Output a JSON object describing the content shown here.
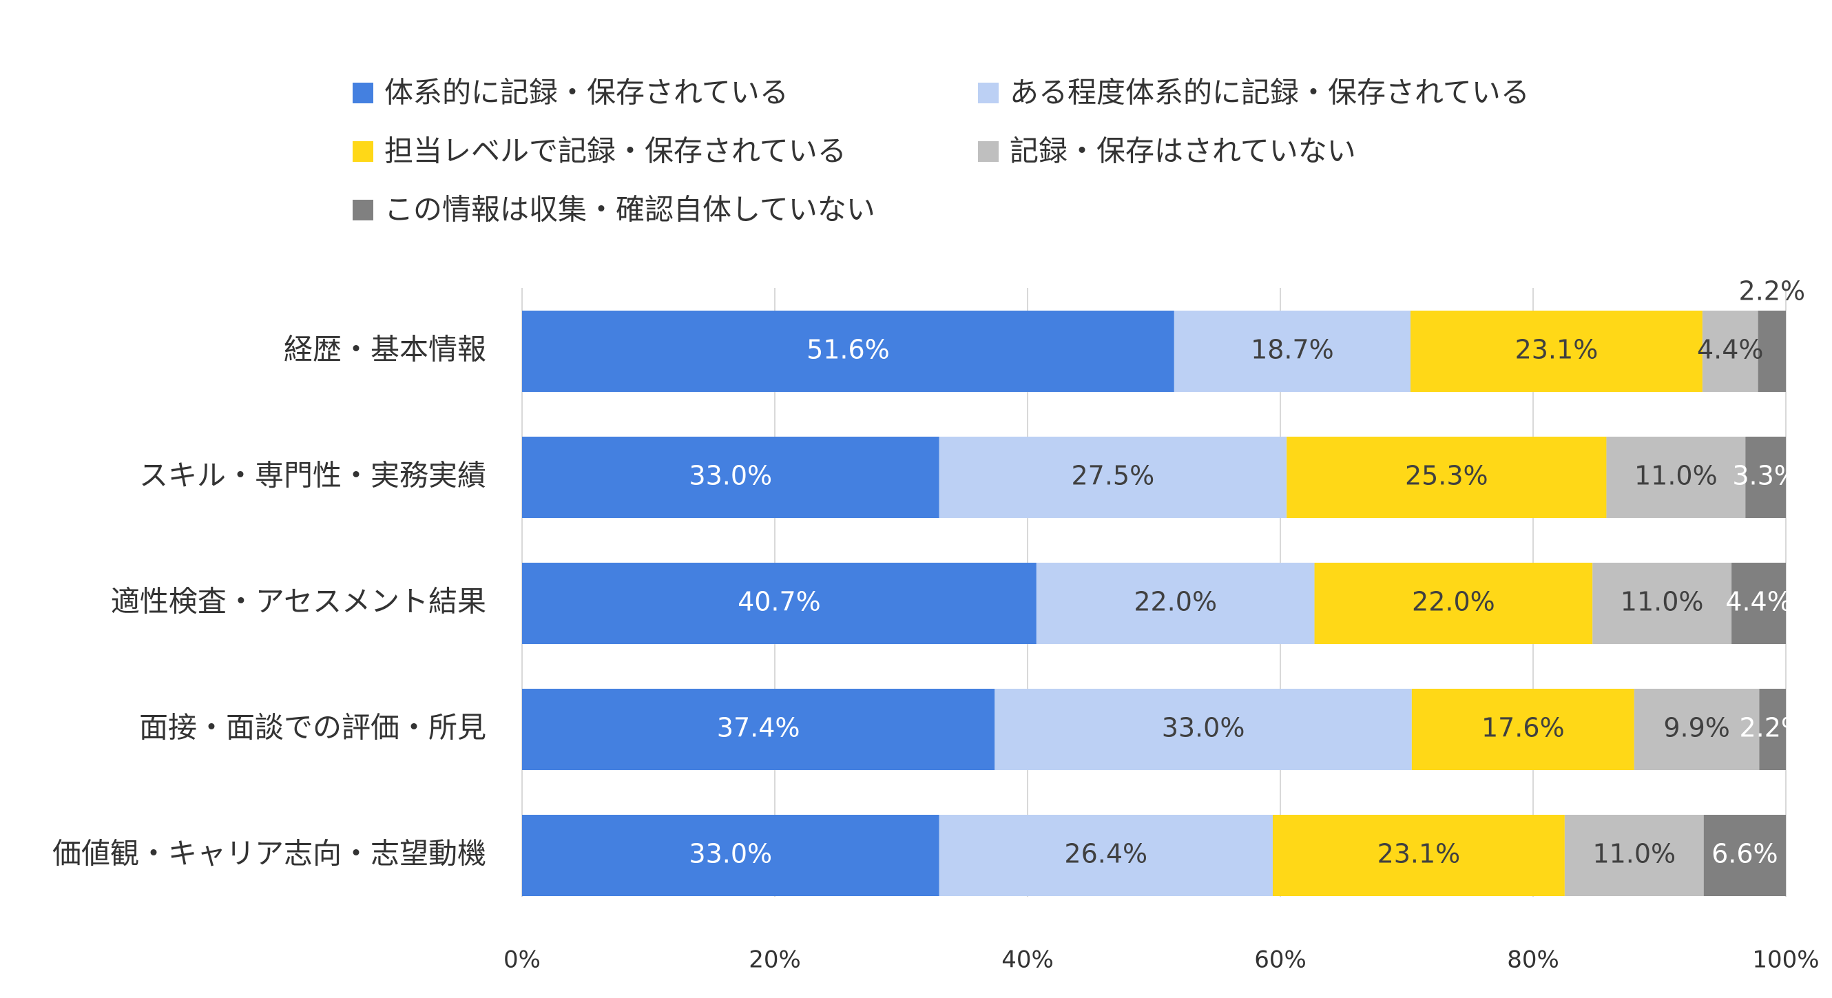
{
  "chart_data": {
    "type": "bar",
    "orientation": "horizontal",
    "stacked": "percent",
    "categories": [
      "経歴・基本情報",
      "スキル・専門性・実務実績",
      "適性検査・アセスメント結果",
      "面接・面談での評価・所見",
      "価値観・キャリア志向・志望動機"
    ],
    "series": [
      {
        "name": "体系的に記録・保存されている",
        "color": "#4480E0",
        "label_color": "#ffffff",
        "values": [
          51.6,
          33.0,
          40.7,
          37.4,
          33.0
        ],
        "labels": [
          "51.6%",
          "33.0%",
          "40.7%",
          "37.4%",
          "33.0%"
        ]
      },
      {
        "name": "ある程度体系的に記録・保存されている",
        "color": "#BCD0F4",
        "label_color": "#404040",
        "values": [
          18.7,
          27.5,
          22.0,
          33.0,
          26.4
        ],
        "labels": [
          "18.7%",
          "27.5%",
          "22.0%",
          "33.0%",
          "26.4%"
        ]
      },
      {
        "name": "担当レベルで記録・保存されている",
        "color": "#FFD817",
        "label_color": "#404040",
        "values": [
          23.1,
          25.3,
          22.0,
          17.6,
          23.1
        ],
        "labels": [
          "23.1%",
          "25.3%",
          "22.0%",
          "17.6%",
          "23.1%"
        ]
      },
      {
        "name": "記録・保存はされていない",
        "color": "#BFBFBF",
        "label_color": "#404040",
        "values": [
          4.4,
          11.0,
          11.0,
          9.9,
          11.0
        ],
        "labels": [
          "4.4%",
          "11.0%",
          "11.0%",
          "9.9%",
          "11.0%"
        ]
      },
      {
        "name": "この情報は収集・確認自体していない",
        "color": "#808080",
        "label_color": "#ffffff",
        "values": [
          2.2,
          3.3,
          4.4,
          2.2,
          6.6
        ],
        "labels": [
          "2.2%",
          "3.3%",
          "4.4%",
          "2.2%",
          "6.6%"
        ]
      }
    ],
    "xlim": [
      0,
      100
    ],
    "x_ticks": [
      "0%",
      "20%",
      "40%",
      "60%",
      "80%",
      "100%"
    ],
    "grid": true,
    "legend_position": "top"
  }
}
